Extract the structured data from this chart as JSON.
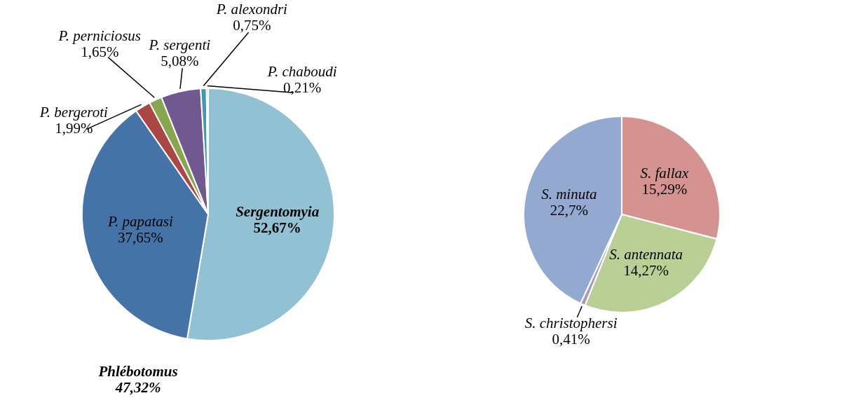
{
  "chart_data": [
    {
      "type": "pie",
      "categories": [
        "Sergentomyia",
        "P. papatasi",
        "P. bergeroti",
        "P. perniciosus",
        "P. sergenti",
        "P. alexondri",
        "P. chaboudi"
      ],
      "values": [
        52.67,
        37.65,
        1.99,
        1.65,
        5.08,
        0.75,
        0.21
      ],
      "value_labels": [
        "52,67%",
        "37,65%",
        "1,99%",
        "1,65%",
        "5,08%",
        "0,75%",
        "0,21%"
      ],
      "colors": [
        "#93c1d4",
        "#4572a7",
        "#aa4643",
        "#89a54e",
        "#71588f",
        "#4198af",
        "#db843d"
      ],
      "annotations": [
        "Phlébotomus\n47,32%"
      ]
    },
    {
      "type": "pie",
      "categories": [
        "S. fallax",
        "S. antennata",
        "S. christophersi",
        "S. minuta"
      ],
      "values": [
        15.29,
        14.27,
        0.41,
        22.7
      ],
      "value_labels": [
        "15,29%",
        "14,27%",
        "0,41%",
        "22,7%"
      ],
      "colors": [
        "#d49391",
        "#b9cf96",
        "#a99bbd",
        "#93a9cf"
      ]
    }
  ]
}
